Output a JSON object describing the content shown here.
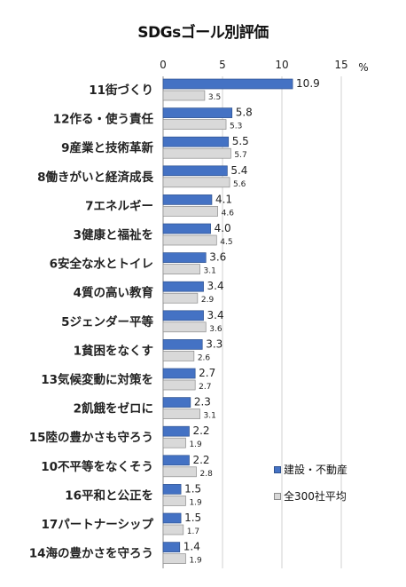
{
  "chart_data": {
    "type": "bar",
    "orientation": "horizontal",
    "title": "SDGsゴール別評価",
    "unit": "%",
    "xlim": [
      0,
      15
    ],
    "x_ticks": [
      "0",
      "5",
      "10",
      "15"
    ],
    "grid": true,
    "legend_position": "bottom-right",
    "colors": {
      "series1": "#4472c4",
      "series2": "#d9d9d9"
    },
    "categories": [
      "11街づくり",
      "12作る・使う責任",
      "9産業と技術革新",
      "8働きがいと経済成長",
      "7エネルギー",
      "3健康と福祉を",
      "6安全な水とトイレ",
      "4質の高い教育",
      "5ジェンダー平等",
      "1貧困をなくす",
      "13気候変動に対策を",
      "2飢餓をゼロに",
      "15陸の豊かさも守ろう",
      "10不平等をなくそう",
      "16平和と公正を",
      "17パートナーシップ",
      "14海の豊かさを守ろう"
    ],
    "series": [
      {
        "name": "建設・不動産",
        "values": [
          10.9,
          5.8,
          5.5,
          5.4,
          4.1,
          4.0,
          3.6,
          3.4,
          3.4,
          3.3,
          2.7,
          2.3,
          2.2,
          2.2,
          1.5,
          1.5,
          1.4
        ]
      },
      {
        "name": "全300社平均",
        "values": [
          3.5,
          5.3,
          5.7,
          5.6,
          4.6,
          4.5,
          3.1,
          2.9,
          3.6,
          2.6,
          2.7,
          3.1,
          1.9,
          2.8,
          1.9,
          1.7,
          1.9
        ]
      }
    ]
  }
}
